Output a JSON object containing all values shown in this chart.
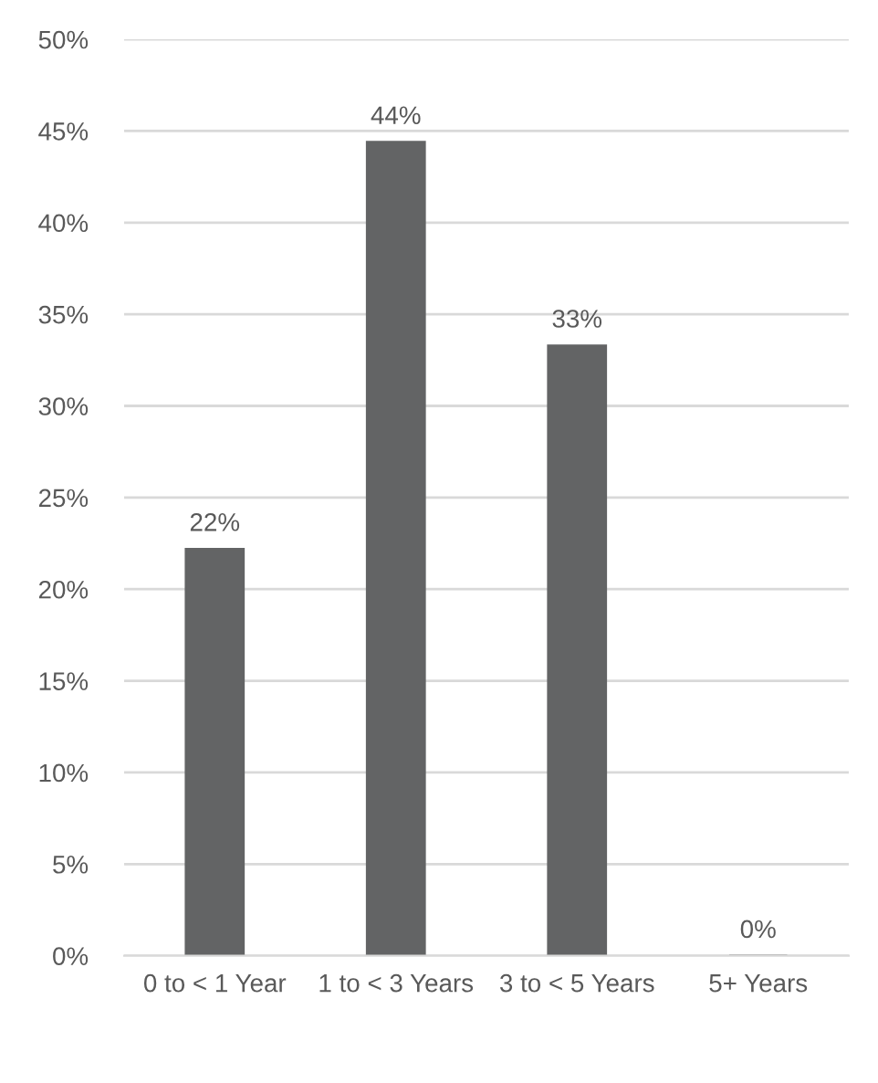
{
  "chart_data": {
    "type": "bar",
    "categories": [
      "0 to < 1 Year",
      "1 to < 3 Years",
      "3 to < 5 Years",
      "5+ Years"
    ],
    "values": [
      22.2,
      44.4,
      33.3,
      0
    ],
    "value_labels": [
      "22%",
      "44%",
      "33%",
      "0%"
    ],
    "color": "#636465",
    "ylim": [
      0,
      50
    ],
    "yticks": [
      {
        "value": 0,
        "label": "0%"
      },
      {
        "value": 5,
        "label": "5%"
      },
      {
        "value": 10,
        "label": "10%"
      },
      {
        "value": 15,
        "label": "15%"
      },
      {
        "value": 20,
        "label": "20%"
      },
      {
        "value": 25,
        "label": "25%"
      },
      {
        "value": 30,
        "label": "30%"
      },
      {
        "value": 35,
        "label": "35%"
      },
      {
        "value": 40,
        "label": "40%"
      },
      {
        "value": 45,
        "label": "45%"
      },
      {
        "value": 50,
        "label": "50%"
      }
    ],
    "grid": "y",
    "legend": false
  }
}
